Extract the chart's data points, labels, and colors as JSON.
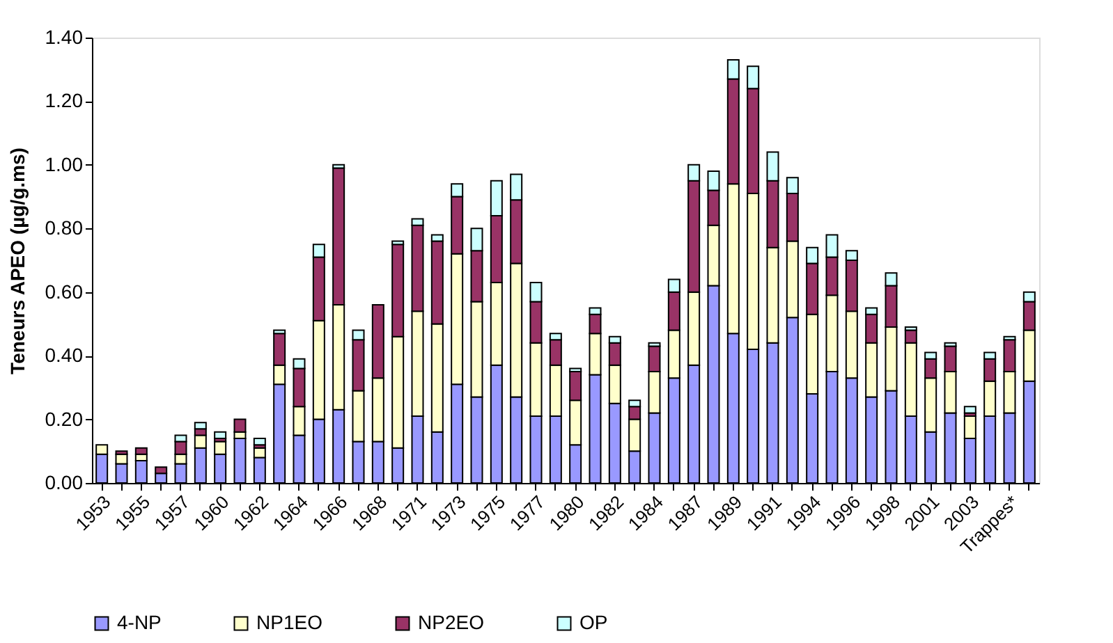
{
  "chart_data": {
    "type": "bar",
    "stacked": true,
    "ylabel": "Teneurs APEO (µg/g.ms)",
    "categories": [
      "1953",
      null,
      "1955",
      null,
      "1957",
      null,
      "1960",
      null,
      "1962",
      null,
      "1964",
      null,
      "1966",
      null,
      "1968",
      null,
      "1971",
      null,
      "1973",
      null,
      "1975",
      null,
      "1977",
      null,
      "1980",
      null,
      "1982",
      null,
      "1984",
      null,
      "1987",
      null,
      "1989",
      null,
      "1991",
      null,
      "1994",
      null,
      "1996",
      null,
      "1998",
      null,
      "2001",
      null,
      "2003",
      null,
      "Trappes*",
      null
    ],
    "series": [
      {
        "name": "4-NP",
        "color": "#9999ff",
        "values": [
          0.09,
          0.06,
          0.07,
          0.03,
          0.06,
          0.11,
          0.09,
          0.14,
          0.08,
          0.31,
          0.15,
          0.2,
          0.23,
          0.13,
          0.13,
          0.11,
          0.21,
          0.16,
          0.31,
          0.27,
          0.37,
          0.27,
          0.21,
          0.21,
          0.12,
          0.34,
          0.25,
          0.1,
          0.22,
          0.33,
          0.37,
          0.62,
          0.47,
          0.42,
          0.44,
          0.52,
          0.28,
          0.35,
          0.33,
          0.27,
          0.29,
          0.21,
          0.16,
          0.22,
          0.14,
          0.21,
          0.22,
          0.32
        ]
      },
      {
        "name": "NP1EO",
        "color": "#ffffcc",
        "values": [
          0.03,
          0.03,
          0.02,
          null,
          0.03,
          0.04,
          0.04,
          0.02,
          0.03,
          0.06,
          0.09,
          0.31,
          0.33,
          0.16,
          0.2,
          0.35,
          0.33,
          0.34,
          0.41,
          0.3,
          0.26,
          0.42,
          0.23,
          0.16,
          0.14,
          0.13,
          0.12,
          0.1,
          0.13,
          0.15,
          0.23,
          0.19,
          0.47,
          0.49,
          0.3,
          0.24,
          0.25,
          0.24,
          0.21,
          0.17,
          0.2,
          0.23,
          0.17,
          0.13,
          0.07,
          0.11,
          0.13,
          0.16
        ]
      },
      {
        "name": "NP2EO",
        "color": "#993366",
        "values": [
          null,
          0.01,
          0.02,
          0.02,
          0.04,
          0.02,
          0.01,
          0.04,
          0.01,
          0.1,
          0.12,
          0.2,
          0.43,
          0.16,
          0.23,
          0.29,
          0.27,
          0.26,
          0.18,
          0.16,
          0.21,
          0.2,
          0.13,
          0.08,
          0.09,
          0.06,
          0.07,
          0.04,
          0.08,
          0.12,
          0.35,
          0.11,
          0.33,
          0.33,
          0.21,
          0.15,
          0.16,
          0.12,
          0.16,
          0.09,
          0.13,
          0.04,
          0.06,
          0.08,
          0.01,
          0.07,
          0.1,
          0.09
        ]
      },
      {
        "name": "OP",
        "color": "#ccffff",
        "values": [
          null,
          null,
          null,
          null,
          0.02,
          0.02,
          0.02,
          null,
          0.02,
          0.01,
          0.03,
          0.04,
          0.01,
          0.03,
          null,
          0.01,
          0.02,
          0.02,
          0.04,
          0.07,
          0.11,
          0.08,
          0.06,
          0.02,
          0.01,
          0.02,
          0.02,
          0.02,
          0.01,
          0.04,
          0.05,
          0.06,
          0.06,
          0.07,
          0.09,
          0.05,
          0.05,
          0.07,
          0.03,
          0.02,
          0.04,
          0.01,
          0.02,
          0.01,
          0.02,
          0.02,
          0.01,
          0.03
        ]
      }
    ],
    "ylim": [
      0,
      1.4
    ],
    "yticks": [
      {
        "value": 0,
        "label": "0.00"
      },
      {
        "value": 0.2,
        "label": "0.20"
      },
      {
        "value": 0.4,
        "label": "0.40"
      },
      {
        "value": 0.6,
        "label": "0.60"
      },
      {
        "value": 0.8,
        "label": "0.80"
      },
      {
        "value": 1.0,
        "label": "1.00"
      },
      {
        "value": 1.2,
        "label": "1.20"
      },
      {
        "value": 1.4,
        "label": "1.40"
      }
    ],
    "grid": false,
    "legend": "bottom"
  }
}
